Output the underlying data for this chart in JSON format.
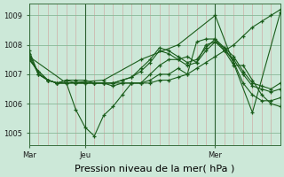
{
  "background_color": "#cce8d8",
  "plot_bg_color": "#cce8d8",
  "grid_major_color": "#88b898",
  "grid_minor_color": "#e8a0a0",
  "line_color": "#1a5c1a",
  "xlabel": "Pression niveau de la mer( hPa )",
  "xlabel_fontsize": 8,
  "ylim": [
    1004.6,
    1009.4
  ],
  "yticks": [
    1005,
    1006,
    1007,
    1008,
    1009
  ],
  "ytick_fontsize": 6,
  "xtick_fontsize": 6,
  "xtick_labels": [
    "Mar",
    "Jeu",
    "Mer"
  ],
  "xtick_positions": [
    0,
    36,
    120
  ],
  "xlim": [
    0,
    162
  ],
  "series": [
    {
      "x": [
        0,
        6,
        12,
        18,
        24,
        30,
        36,
        42,
        48,
        54,
        60,
        66,
        72,
        78,
        84,
        90,
        96,
        102,
        108,
        114,
        120,
        126,
        132,
        138,
        144,
        150,
        156,
        162
      ],
      "y": [
        1007.7,
        1007.0,
        1006.8,
        1006.7,
        1006.8,
        1006.7,
        1006.7,
        1006.7,
        1006.7,
        1006.7,
        1006.7,
        1006.7,
        1006.7,
        1006.7,
        1006.8,
        1006.8,
        1006.9,
        1007.0,
        1007.2,
        1007.4,
        1007.6,
        1007.8,
        1008.0,
        1008.3,
        1008.6,
        1008.8,
        1009.0,
        1009.2
      ]
    },
    {
      "x": [
        0,
        6,
        12,
        18,
        24,
        30,
        36,
        42,
        48,
        54,
        60,
        66,
        72,
        78,
        84,
        90,
        96,
        102,
        108,
        114,
        120,
        126,
        132,
        138,
        144,
        150,
        156,
        162
      ],
      "y": [
        1007.5,
        1007.1,
        1006.8,
        1006.7,
        1006.8,
        1006.8,
        1006.8,
        1006.7,
        1006.7,
        1006.6,
        1006.7,
        1006.7,
        1006.7,
        1007.0,
        1007.3,
        1007.5,
        1007.5,
        1007.6,
        1007.4,
        1008.0,
        1008.1,
        1007.9,
        1007.4,
        1006.7,
        1006.3,
        1006.1,
        1006.1,
        1006.2
      ]
    },
    {
      "x": [
        0,
        6,
        12,
        18,
        24,
        30,
        36,
        42,
        48,
        54,
        60,
        66,
        72,
        78,
        84,
        90,
        96,
        102,
        108,
        114,
        120,
        126,
        132,
        138,
        144,
        150,
        156,
        162
      ],
      "y": [
        1007.5,
        1007.1,
        1006.8,
        1006.7,
        1006.7,
        1005.8,
        1005.2,
        1004.9,
        1005.6,
        1005.9,
        1006.3,
        1006.7,
        1006.7,
        1006.8,
        1007.0,
        1007.0,
        1007.2,
        1007.0,
        1008.1,
        1008.2,
        1008.2,
        1007.8,
        1007.3,
        1007.3,
        1006.8,
        1006.3,
        1006.0,
        1005.9
      ]
    },
    {
      "x": [
        0,
        6,
        12,
        18,
        24,
        30,
        36,
        42,
        48,
        54,
        60,
        66,
        72,
        78,
        84,
        90,
        96,
        102,
        108,
        114,
        120,
        126,
        132,
        138,
        144,
        150,
        156,
        162
      ],
      "y": [
        1007.8,
        1007.0,
        1006.8,
        1006.7,
        1006.7,
        1006.7,
        1006.7,
        1006.7,
        1006.7,
        1006.7,
        1006.8,
        1006.9,
        1007.1,
        1007.4,
        1007.8,
        1007.7,
        1007.5,
        1007.3,
        1007.4,
        1007.8,
        1008.1,
        1007.8,
        1007.5,
        1007.0,
        1006.6,
        1006.5,
        1006.4,
        1006.5
      ]
    },
    {
      "x": [
        0,
        6,
        12,
        18,
        24,
        30,
        36,
        42,
        48,
        54,
        60,
        66,
        72,
        78,
        84,
        90,
        96,
        102,
        108,
        114,
        120,
        126,
        132,
        138,
        144,
        150,
        156,
        162
      ],
      "y": [
        1007.6,
        1007.0,
        1006.8,
        1006.7,
        1006.7,
        1006.7,
        1006.7,
        1006.7,
        1006.7,
        1006.7,
        1006.8,
        1006.9,
        1007.2,
        1007.5,
        1007.9,
        1007.8,
        1007.6,
        1007.4,
        1007.5,
        1007.9,
        1008.2,
        1007.9,
        1007.6,
        1007.1,
        1006.7,
        1006.6,
        1006.5,
        1006.7
      ]
    },
    {
      "x": [
        0,
        24,
        48,
        72,
        96,
        120,
        144,
        162
      ],
      "y": [
        1007.6,
        1006.7,
        1006.8,
        1007.5,
        1008.0,
        1009.0,
        1005.7,
        1009.1
      ]
    }
  ]
}
